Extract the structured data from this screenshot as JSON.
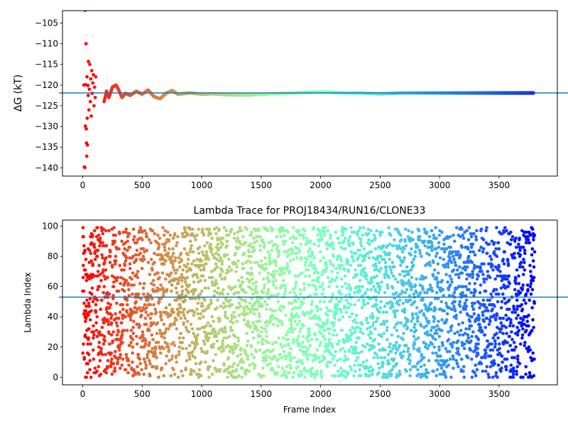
{
  "chart_data": [
    {
      "type": "scatter",
      "title": "",
      "xlabel": "",
      "ylabel": "ΔG (kT)",
      "xlim": [
        -170,
        3990
      ],
      "ylim": [
        -142,
        -102
      ],
      "xticks": [
        0,
        500,
        1000,
        1500,
        2000,
        2500,
        3000,
        3500
      ],
      "yticks": [
        -140,
        -135,
        -130,
        -125,
        -120,
        -115,
        -110,
        -105
      ],
      "ytick_labels": [
        "−140",
        "−135",
        "−130",
        "−125",
        "−120",
        "−115",
        "−110",
        "−105"
      ],
      "hline": -121.9,
      "hline_color": "#1f77b4",
      "colormap": "rainbow (red at early frames → purple at late frames)",
      "series": [
        {
          "points": [
            [
              10,
              -120.0
            ],
            [
              14,
              -139.8
            ],
            [
              18,
              -139.9
            ],
            [
              20,
              -101.9
            ],
            [
              22,
              -129.9
            ],
            [
              24,
              -119.9
            ],
            [
              28,
              -110.0
            ],
            [
              30,
              -130.6
            ],
            [
              32,
              -134.0
            ],
            [
              34,
              -137.2
            ],
            [
              36,
              -118.0
            ],
            [
              38,
              -128.0
            ],
            [
              40,
              -134.5
            ],
            [
              44,
              -120.1
            ],
            [
              46,
              -122.5
            ],
            [
              48,
              -114.3
            ],
            [
              52,
              -126.0
            ],
            [
              56,
              -121.0
            ],
            [
              60,
              -115.0
            ],
            [
              64,
              -124.0
            ],
            [
              68,
              -118.5
            ],
            [
              72,
              -127.5
            ],
            [
              76,
              -116.5
            ],
            [
              80,
              -122.0
            ],
            [
              85,
              -119.5
            ],
            [
              90,
              -117.5
            ],
            [
              95,
              -125.0
            ],
            [
              100,
              -120.5
            ],
            [
              105,
              -123.0
            ],
            [
              110,
              -118.0
            ],
            [
              115,
              -121.5
            ],
            [
              120,
              -117.0
            ],
            [
              125,
              -124.5
            ],
            [
              130,
              -119.0
            ],
            [
              140,
              -122.0
            ],
            [
              150,
              -123.5
            ],
            [
              160,
              -125.5
            ],
            [
              170,
              -121.0
            ],
            [
              180,
              -124.0
            ],
            [
              200,
              -121.5
            ],
            [
              220,
              -123.0
            ],
            [
              250,
              -120.5
            ],
            [
              280,
              -120.0
            ],
            [
              300,
              -121.0
            ],
            [
              330,
              -123.0
            ],
            [
              360,
              -122.0
            ],
            [
              400,
              -122.5
            ],
            [
              450,
              -121.5
            ],
            [
              500,
              -122.2
            ],
            [
              550,
              -121.2
            ],
            [
              600,
              -122.8
            ],
            [
              650,
              -123.3
            ],
            [
              700,
              -122.0
            ],
            [
              750,
              -121.3
            ],
            [
              800,
              -122.2
            ],
            [
              900,
              -121.9
            ],
            [
              1000,
              -122.2
            ],
            [
              1100,
              -122.1
            ],
            [
              1200,
              -122.3
            ],
            [
              1300,
              -122.4
            ],
            [
              1400,
              -122.4
            ],
            [
              1500,
              -122.2
            ],
            [
              1600,
              -122.1
            ],
            [
              1700,
              -122.0
            ],
            [
              1800,
              -121.9
            ],
            [
              1900,
              -121.8
            ],
            [
              2000,
              -121.7
            ],
            [
              2100,
              -121.8
            ],
            [
              2200,
              -121.9
            ],
            [
              2300,
              -121.9
            ],
            [
              2400,
              -122.0
            ],
            [
              2500,
              -122.1
            ],
            [
              2600,
              -122.0
            ],
            [
              2700,
              -121.9
            ],
            [
              2800,
              -121.9
            ],
            [
              2900,
              -121.9
            ],
            [
              3000,
              -121.9
            ],
            [
              3100,
              -121.9
            ],
            [
              3200,
              -121.9
            ],
            [
              3300,
              -121.9
            ],
            [
              3400,
              -121.9
            ],
            [
              3500,
              -121.9
            ],
            [
              3600,
              -121.9
            ],
            [
              3700,
              -121.9
            ],
            [
              3790,
              -121.9
            ]
          ]
        }
      ]
    },
    {
      "type": "scatter",
      "title": "Lambda Trace for PROJ18434/RUN16/CLONE33",
      "xlabel": "Frame Index",
      "ylabel": "Lambda Index",
      "xlim": [
        -170,
        3990
      ],
      "ylim": [
        -5,
        104
      ],
      "xticks": [
        0,
        500,
        1000,
        1500,
        2000,
        2500,
        3000,
        3500
      ],
      "yticks": [
        0,
        20,
        40,
        60,
        80,
        100
      ],
      "hline": 53,
      "hline_color": "#1f77b4",
      "colormap": "rainbow (red at early frames → purple at late frames)",
      "frame_count": 3800,
      "lambda_range": [
        0,
        99
      ]
    }
  ]
}
